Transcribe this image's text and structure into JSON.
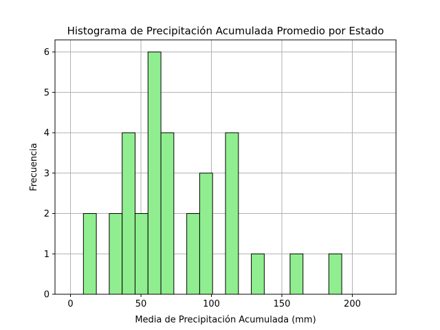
{
  "chart_data": {
    "type": "bar",
    "title": "Histograma de Precipitación Acumulada Promedio por Estado",
    "xlabel": "Media de Precipitación Acumulada (mm)",
    "ylabel": "Frecuencia",
    "xlim": [
      -11,
      231
    ],
    "ylim": [
      0,
      6.3
    ],
    "x_ticks": [
      0,
      50,
      100,
      150,
      200
    ],
    "y_ticks": [
      0,
      1,
      2,
      3,
      4,
      5,
      6
    ],
    "grid": true,
    "bar_color": "#90ee90",
    "edge_color": "#000000",
    "bins": [
      {
        "x0": 0.0,
        "x1": 9.17,
        "count": 0
      },
      {
        "x0": 9.17,
        "x1": 18.33,
        "count": 2
      },
      {
        "x0": 18.33,
        "x1": 27.5,
        "count": 0
      },
      {
        "x0": 27.5,
        "x1": 36.67,
        "count": 2
      },
      {
        "x0": 36.67,
        "x1": 45.83,
        "count": 4
      },
      {
        "x0": 45.83,
        "x1": 55.0,
        "count": 2
      },
      {
        "x0": 55.0,
        "x1": 64.17,
        "count": 6
      },
      {
        "x0": 64.17,
        "x1": 73.33,
        "count": 4
      },
      {
        "x0": 73.33,
        "x1": 82.5,
        "count": 0
      },
      {
        "x0": 82.5,
        "x1": 91.67,
        "count": 2
      },
      {
        "x0": 91.67,
        "x1": 100.83,
        "count": 3
      },
      {
        "x0": 100.83,
        "x1": 110.0,
        "count": 0
      },
      {
        "x0": 110.0,
        "x1": 119.17,
        "count": 4
      },
      {
        "x0": 119.17,
        "x1": 128.33,
        "count": 0
      },
      {
        "x0": 128.33,
        "x1": 137.5,
        "count": 1
      },
      {
        "x0": 137.5,
        "x1": 146.67,
        "count": 0
      },
      {
        "x0": 146.67,
        "x1": 155.83,
        "count": 0
      },
      {
        "x0": 155.83,
        "x1": 165.0,
        "count": 1
      },
      {
        "x0": 165.0,
        "x1": 174.17,
        "count": 0
      },
      {
        "x0": 174.17,
        "x1": 183.33,
        "count": 0
      },
      {
        "x0": 183.33,
        "x1": 192.5,
        "count": 1
      },
      {
        "x0": 192.5,
        "x1": 201.67,
        "count": 0
      },
      {
        "x0": 201.67,
        "x1": 210.83,
        "count": 0
      },
      {
        "x0": 210.83,
        "x1": 220.0,
        "count": 0
      }
    ]
  }
}
